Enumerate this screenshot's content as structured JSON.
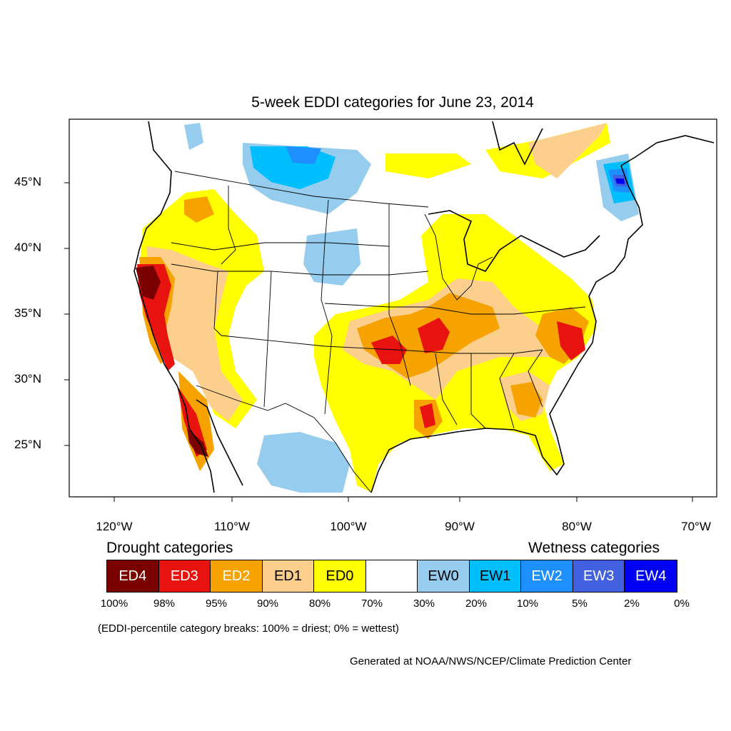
{
  "title": "5-week EDDI categories for June 23, 2014",
  "lat_labels": [
    "45°N",
    "40°N",
    "35°N",
    "30°N",
    "25°N"
  ],
  "lon_labels": [
    "120°W",
    "110°W",
    "100°W",
    "90°W",
    "80°W",
    "70°W"
  ],
  "drought_heading": "Drought categories",
  "wetness_heading": "Wetness categories",
  "categories": [
    {
      "label": "ED4",
      "color": "#7a0000",
      "text_color": "#ffffff"
    },
    {
      "label": "ED3",
      "color": "#e8120f",
      "text_color": "#ffffff"
    },
    {
      "label": "ED2",
      "color": "#f6a300",
      "text_color": "#ffffff"
    },
    {
      "label": "ED1",
      "color": "#fccf8c",
      "text_color": "#000000"
    },
    {
      "label": "ED0",
      "color": "#ffff00",
      "text_color": "#000000"
    },
    {
      "label": "",
      "color": "#ffffff",
      "text_color": "#000000"
    },
    {
      "label": "EW0",
      "color": "#96cdef",
      "text_color": "#000000"
    },
    {
      "label": "EW1",
      "color": "#00bfff",
      "text_color": "#000000"
    },
    {
      "label": "EW2",
      "color": "#1e8fff",
      "text_color": "#ffffff"
    },
    {
      "label": "EW3",
      "color": "#4161e0",
      "text_color": "#ffffff"
    },
    {
      "label": "EW4",
      "color": "#0000f5",
      "text_color": "#ffffff"
    }
  ],
  "percent_breaks": [
    "100%",
    "98%",
    "95%",
    "90%",
    "80%",
    "70%",
    "30%",
    "20%",
    "10%",
    "5%",
    "2%",
    "0%"
  ],
  "note": "(EDDI-percentile category breaks: 100% = driest; 0% = wettest)",
  "credit": "Generated at NOAA/NWS/NCEP/Climate Prediction Center"
}
